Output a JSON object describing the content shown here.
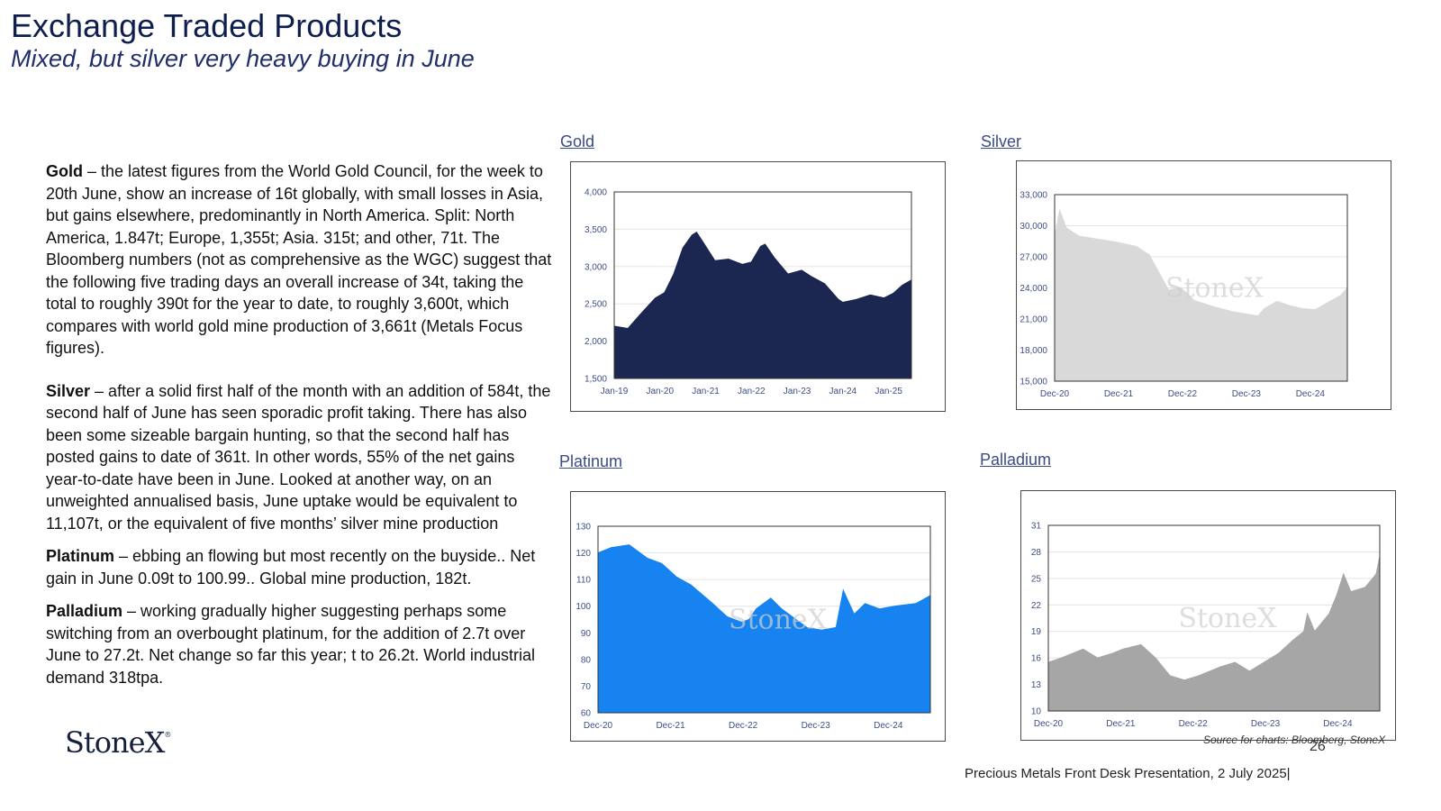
{
  "header": {
    "title": "Exchange Traded Products",
    "subtitle": "Mixed, but silver very heavy buying in June"
  },
  "body": {
    "gold_label": "Gold",
    "gold_text": " – the latest figures from the World Gold Council, for the week to 20th June, show an increase of 16t globally, with small losses in Asia, but gains elsewhere, predominantly in North America.  Split: North America, 1.847t; Europe, 1,355t; Asia. 315t; and other, 71t.  The Bloomberg numbers (not as comprehensive as the WGC) suggest that the following five trading days an overall increase of 34t, taking the total to roughly 390t for the year to date, to roughly 3,600t, which compares with world gold mine production of 3,661t (Metals Focus figures).",
    "silver_label": "Silver",
    "silver_text": " –  after a solid first half of the month with an addition of 584t, the second half of June has seen sporadic profit taking. There has also been some sizeable bargain hunting, so that the second half has posted gains to date of 361t.  In other words, 55% of the net gains year-to-date have been in June. Looked at another way, on an unweighted annualised basis, June uptake would be equivalent to 11,107t, or the equivalent of five months’ silver mine production",
    "platinum_label": "Platinum",
    "platinum_text": " – ebbing an flowing but most recently on the buyside.. Net gain in June 0.09t to 100.99..  Global mine production, 182t.",
    "palladium_label": "Palladium",
    "palladium_text": " – working gradually higher suggesting perhaps some switching from an overbought platinum,  for the addition of 2.7t over June to 27.2t.   Net change so far this year;  t to 26.2t.  World industrial demand 318tpa."
  },
  "logo": {
    "text": "StoneX",
    "mark": "®"
  },
  "source": "Source for charts: Bloomberg, StoneX",
  "page_number": "26",
  "footer": "Precious Metals Front Desk Presentation, 2 July 2025|",
  "chart_data": [
    {
      "id": "gold",
      "type": "area",
      "title": "Gold",
      "color": "#1b2651",
      "xlabels": [
        "Jan-19",
        "Jan-20",
        "Jan-21",
        "Jan-22",
        "Jan-23",
        "Jan-24",
        "Jan-25"
      ],
      "yticks": [
        1500,
        2000,
        2500,
        3000,
        3500,
        4000
      ],
      "ylabels": [
        "1,500",
        "2,000",
        "2,500",
        "3,000",
        "3,500",
        "4,000"
      ],
      "ylim": [
        1500,
        4000
      ],
      "xrange": [
        2019.0,
        2025.5
      ],
      "points": [
        [
          2019.0,
          2200
        ],
        [
          2019.3,
          2170
        ],
        [
          2019.6,
          2380
        ],
        [
          2019.9,
          2580
        ],
        [
          2020.1,
          2650
        ],
        [
          2020.3,
          2900
        ],
        [
          2020.5,
          3250
        ],
        [
          2020.7,
          3420
        ],
        [
          2020.8,
          3460
        ],
        [
          2020.95,
          3320
        ],
        [
          2021.2,
          3080
        ],
        [
          2021.5,
          3100
        ],
        [
          2021.8,
          3030
        ],
        [
          2022.0,
          3060
        ],
        [
          2022.2,
          3270
        ],
        [
          2022.3,
          3300
        ],
        [
          2022.5,
          3120
        ],
        [
          2022.8,
          2900
        ],
        [
          2023.1,
          2950
        ],
        [
          2023.3,
          2870
        ],
        [
          2023.6,
          2770
        ],
        [
          2023.9,
          2560
        ],
        [
          2024.0,
          2520
        ],
        [
          2024.3,
          2560
        ],
        [
          2024.6,
          2620
        ],
        [
          2024.9,
          2580
        ],
        [
          2025.1,
          2640
        ],
        [
          2025.3,
          2750
        ],
        [
          2025.5,
          2820
        ]
      ]
    },
    {
      "id": "silver",
      "type": "area",
      "title": "Silver",
      "color": "#d9d9d9",
      "watermark": "StoneX",
      "xlabels": [
        "Dec-20",
        "Dec-21",
        "Dec-22",
        "Dec-23",
        "Dec-24"
      ],
      "yticks": [
        15000,
        18000,
        21000,
        24000,
        27000,
        30000,
        33000
      ],
      "ylabels": [
        "15,000",
        "18,000",
        "21,000",
        "24,000",
        "27,000",
        "30,000",
        "33,000"
      ],
      "ylim": [
        15000,
        33000
      ],
      "xrange": [
        2020.92,
        2025.5
      ],
      "points": [
        [
          2020.92,
          29000
        ],
        [
          2021.0,
          31500
        ],
        [
          2021.1,
          29800
        ],
        [
          2021.3,
          29000
        ],
        [
          2021.6,
          28700
        ],
        [
          2021.9,
          28400
        ],
        [
          2022.2,
          28000
        ],
        [
          2022.4,
          27200
        ],
        [
          2022.55,
          25500
        ],
        [
          2022.7,
          23800
        ],
        [
          2022.9,
          24000
        ],
        [
          2023.1,
          22800
        ],
        [
          2023.4,
          22200
        ],
        [
          2023.7,
          21700
        ],
        [
          2023.9,
          21500
        ],
        [
          2024.1,
          21300
        ],
        [
          2024.2,
          22000
        ],
        [
          2024.4,
          22700
        ],
        [
          2024.6,
          22300
        ],
        [
          2024.8,
          22000
        ],
        [
          2025.0,
          21900
        ],
        [
          2025.2,
          22600
        ],
        [
          2025.4,
          23300
        ],
        [
          2025.5,
          24000
        ]
      ]
    },
    {
      "id": "platinum",
      "type": "area",
      "title": "Platinum",
      "color": "#1683f0",
      "watermark": "StoneX",
      "xlabels": [
        "Dec-20",
        "Dec-21",
        "Dec-22",
        "Dec-23",
        "Dec-24"
      ],
      "yticks": [
        60,
        70,
        80,
        90,
        100,
        110,
        120,
        130
      ],
      "ylabels": [
        "60",
        "70",
        "80",
        "90",
        "100",
        "110",
        "120",
        "130"
      ],
      "ylim": [
        60,
        130
      ],
      "xrange": [
        2020.92,
        2025.5
      ],
      "points": [
        [
          2020.92,
          120
        ],
        [
          2021.1,
          122
        ],
        [
          2021.35,
          123
        ],
        [
          2021.6,
          118
        ],
        [
          2021.8,
          116
        ],
        [
          2022.0,
          111
        ],
        [
          2022.2,
          108
        ],
        [
          2022.5,
          101
        ],
        [
          2022.7,
          96
        ],
        [
          2022.9,
          94
        ],
        [
          2023.0,
          95
        ],
        [
          2023.1,
          99
        ],
        [
          2023.3,
          103
        ],
        [
          2023.45,
          99
        ],
        [
          2023.6,
          96
        ],
        [
          2023.8,
          92
        ],
        [
          2024.0,
          91
        ],
        [
          2024.2,
          92
        ],
        [
          2024.3,
          106
        ],
        [
          2024.45,
          97
        ],
        [
          2024.6,
          101
        ],
        [
          2024.8,
          99
        ],
        [
          2025.0,
          100
        ],
        [
          2025.3,
          101
        ],
        [
          2025.5,
          104
        ]
      ]
    },
    {
      "id": "palladium",
      "type": "area",
      "title": "Palladium",
      "color": "#a6a6a6",
      "watermark": "StoneX",
      "xlabels": [
        "Dec-20",
        "Dec-21",
        "Dec-22",
        "Dec-23",
        "Dec-24"
      ],
      "yticks": [
        10,
        13,
        16,
        19,
        22,
        25,
        28,
        31
      ],
      "ylabels": [
        "10",
        "13",
        "16",
        "19",
        "22",
        "25",
        "28",
        "31"
      ],
      "ylim": [
        10,
        31
      ],
      "xrange": [
        2020.92,
        2025.5
      ],
      "points": [
        [
          2020.92,
          15.5
        ],
        [
          2021.1,
          16
        ],
        [
          2021.4,
          17
        ],
        [
          2021.6,
          16
        ],
        [
          2021.8,
          16.5
        ],
        [
          2021.95,
          17
        ],
        [
          2022.2,
          17.5
        ],
        [
          2022.4,
          16
        ],
        [
          2022.6,
          14
        ],
        [
          2022.8,
          13.5
        ],
        [
          2023.0,
          14
        ],
        [
          2023.3,
          15
        ],
        [
          2023.5,
          15.5
        ],
        [
          2023.7,
          14.5
        ],
        [
          2023.9,
          15.5
        ],
        [
          2024.1,
          16.5
        ],
        [
          2024.3,
          18
        ],
        [
          2024.45,
          19
        ],
        [
          2024.5,
          21
        ],
        [
          2024.6,
          19
        ],
        [
          2024.8,
          21
        ],
        [
          2024.9,
          23
        ],
        [
          2025.0,
          25.5
        ],
        [
          2025.1,
          23.5
        ],
        [
          2025.3,
          24
        ],
        [
          2025.45,
          25.5
        ],
        [
          2025.5,
          27.5
        ]
      ]
    }
  ]
}
